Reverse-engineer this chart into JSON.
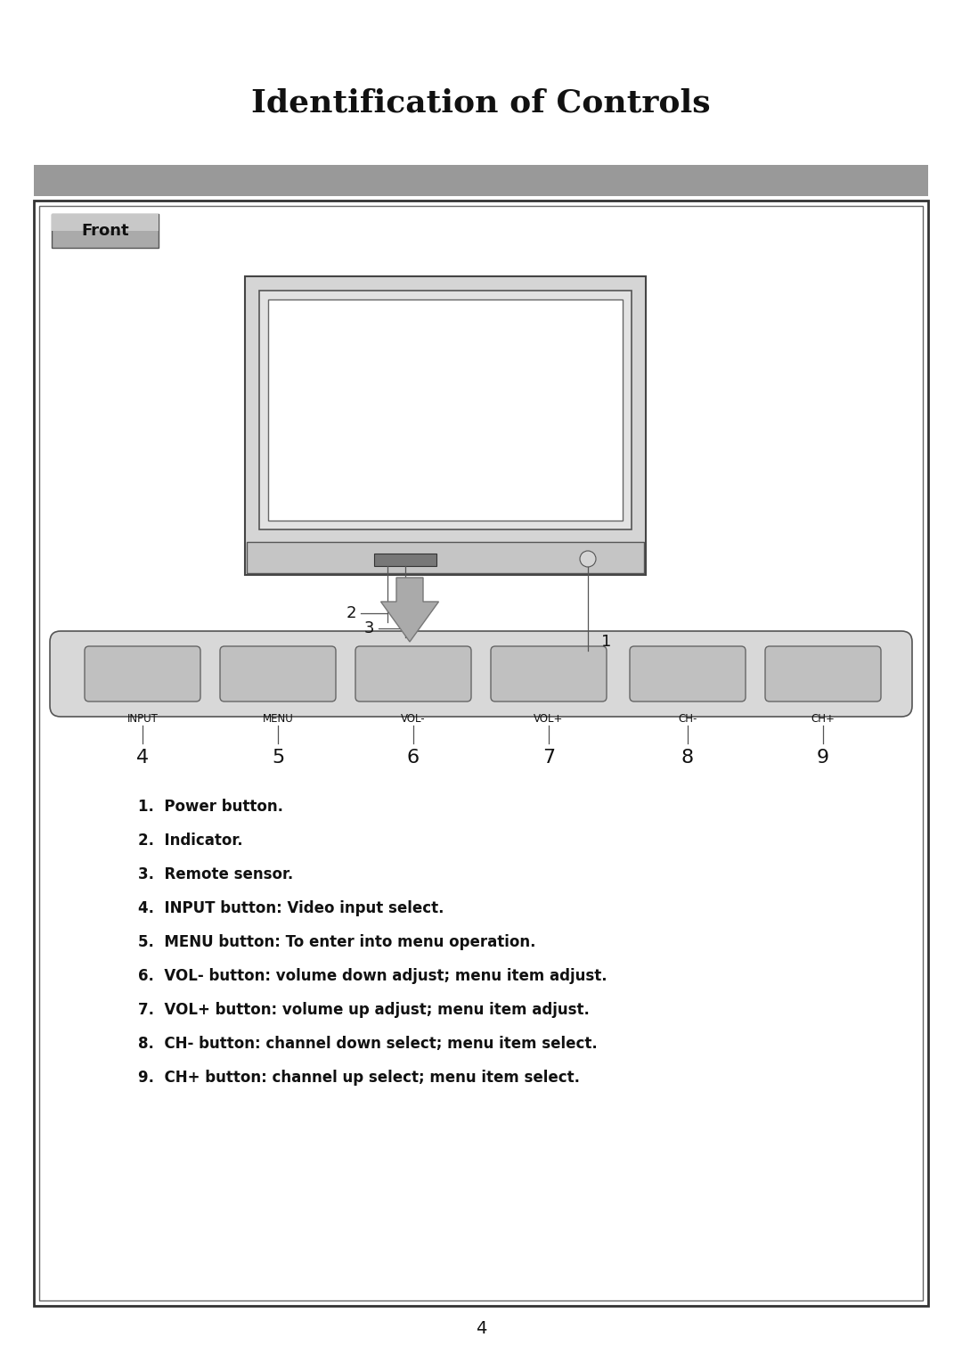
{
  "title": "Identification of Controls",
  "section_label": "Front",
  "page_number": "4",
  "background_color": "#ffffff",
  "header_bar_color": "#999999",
  "button_labels": [
    "INPUT",
    "MENU",
    "VOL-",
    "VOL+",
    "CH-",
    "CH+"
  ],
  "button_numbers": [
    "4",
    "5",
    "6",
    "7",
    "8",
    "9"
  ],
  "descriptions": [
    "1.  Power button.",
    "2.  Indicator.",
    "3.  Remote sensor.",
    "4.  INPUT button: Video input select.",
    "5.  MENU button: To enter into menu operation.",
    "6.  VOL- button: volume down adjust; menu item adjust.",
    "7.  VOL+ button: volume up adjust; menu item adjust.",
    "8.  CH- button: channel down select; menu item select.",
    "9.  CH+ button: channel up select; menu item select."
  ],
  "tv_outer_color": "#d8d8d8",
  "tv_bezel_color": "#e8e8e8",
  "screen_color": "#ffffff",
  "base_bar_color": "#c0c0c0",
  "ctrl_panel_color": "#888888",
  "button_strip_color": "#d0d0d0",
  "button_color": "#c0c0c0",
  "arrow_color": "#999999",
  "callout_line_color": "#555555"
}
